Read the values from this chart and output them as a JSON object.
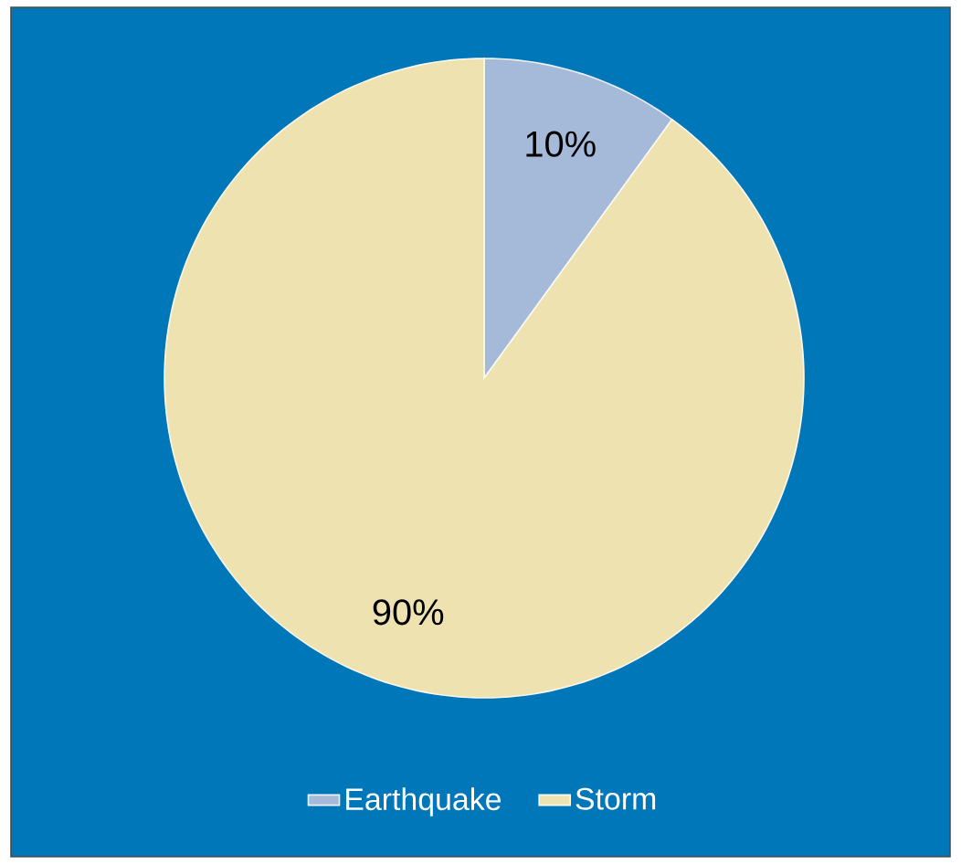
{
  "chart_data": {
    "type": "pie",
    "categories": [
      "Earthquake",
      "Storm"
    ],
    "values": [
      10,
      90
    ],
    "colors": [
      "#a5b9d9",
      "#ede2b0"
    ],
    "value_labels": [
      "10%",
      "90%"
    ],
    "legend": "bottom"
  }
}
